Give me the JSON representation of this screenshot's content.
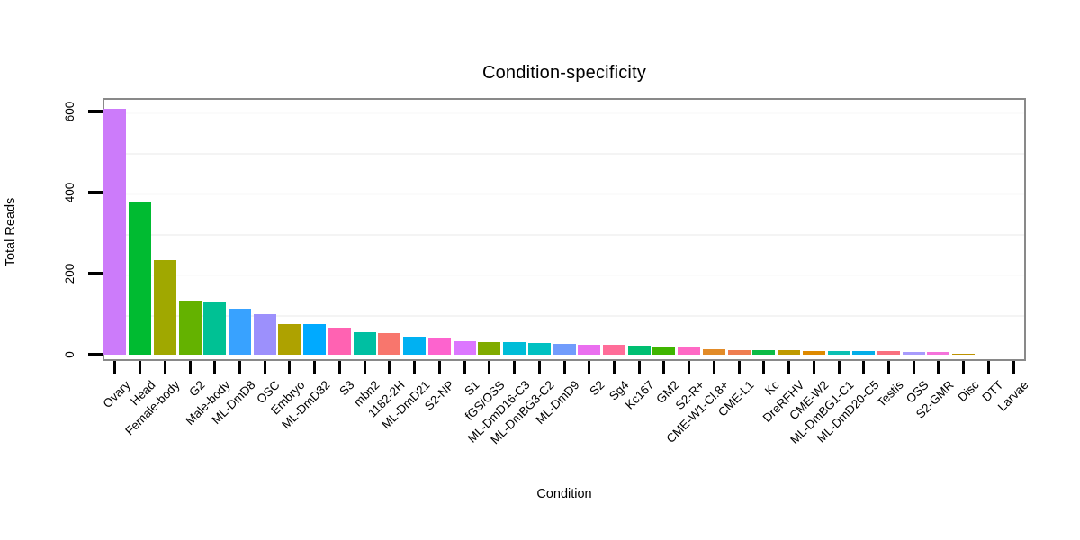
{
  "page": {
    "background": "#ffffff"
  },
  "chart_data": {
    "type": "bar",
    "title": "Condition-specificity",
    "xlabel": "Condition",
    "ylabel": "Total Reads",
    "yticks": [
      0,
      200,
      400,
      600
    ],
    "ylim": [
      0,
      633
    ],
    "legend": "none",
    "grid": {
      "minor_breaks": [
        100,
        300,
        500
      ],
      "minor_color": "#f4f4f4",
      "major_breaks": [
        200,
        400,
        600
      ],
      "major_color": "#fbfbfb"
    },
    "panel_border_color": "#898989",
    "tick_color": "#000000",
    "categories": [
      "Ovary",
      "Head",
      "Female-body",
      "G2",
      "Male-body",
      "ML-DmD8",
      "OSC",
      "Embryo",
      "ML-DmD32",
      "S3",
      "mbn2",
      "1182-2H",
      "ML-DmD21",
      "S2-NP",
      "S1",
      "fGS/OSS",
      "ML-DmD16-C3",
      "ML-DmBG3-C2",
      "ML-DmD9",
      "S2",
      "Sg4",
      "Kc167",
      "GM2",
      "S2-R+",
      "CME-W1-Cl.8+",
      "CME-L1",
      "Kc",
      "DreRFHV",
      "CME-W2",
      "ML-DmBG1-C1",
      "ML-DmD20-C5",
      "Testis",
      "OSS",
      "S2-GMR",
      "Disc",
      "DTT",
      "Larvae"
    ],
    "values": [
      605,
      375,
      232,
      133,
      131,
      114,
      99,
      76,
      75,
      67,
      56,
      53,
      44,
      42,
      34,
      32,
      31,
      28,
      26,
      25,
      24,
      23,
      20,
      18,
      13,
      12,
      12,
      10,
      9,
      9,
      9,
      8,
      7,
      6,
      2,
      0,
      0
    ],
    "colors": [
      "#CC7BFA",
      "#00BB31",
      "#A0A800",
      "#64B200",
      "#00C194",
      "#38A2FF",
      "#9C90FC",
      "#AEA200",
      "#00AAFF",
      "#FF62B2",
      "#00BFA2",
      "#F8766D",
      "#00B1F2",
      "#FD63CE",
      "#DC77FF",
      "#80AB00",
      "#00BDD8",
      "#00C1C2",
      "#719CFC",
      "#EA6FEF",
      "#FF6D99",
      "#00BF72",
      "#3FB500",
      "#FF69C5",
      "#E28B28",
      "#EF7E50",
      "#0BBB45",
      "#BF9A00",
      "#DE8A00",
      "#0BC0B3",
      "#04AEE8",
      "#F9707F",
      "#A89BFC",
      "#F573DB",
      "#BD9200",
      "#9DA700",
      "#8CAB00"
    ]
  }
}
